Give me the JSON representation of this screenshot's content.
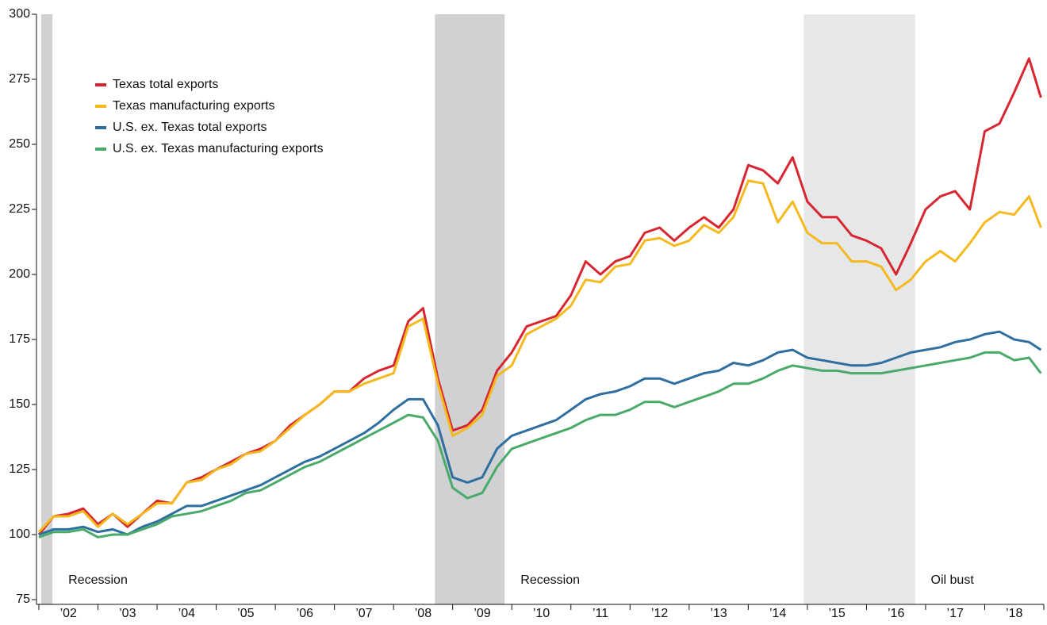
{
  "chart_data": {
    "type": "line",
    "x": [
      2002,
      2002.25,
      2002.5,
      2002.75,
      2003,
      2003.25,
      2003.5,
      2003.75,
      2004,
      2004.25,
      2004.5,
      2004.75,
      2005,
      2005.25,
      2005.5,
      2005.75,
      2006,
      2006.25,
      2006.5,
      2006.75,
      2007,
      2007.25,
      2007.5,
      2007.75,
      2008,
      2008.25,
      2008.5,
      2008.75,
      2009,
      2009.25,
      2009.5,
      2009.75,
      2010,
      2010.25,
      2010.5,
      2010.75,
      2011,
      2011.25,
      2011.5,
      2011.75,
      2012,
      2012.25,
      2012.5,
      2012.75,
      2013,
      2013.25,
      2013.5,
      2013.75,
      2014,
      2014.25,
      2014.5,
      2014.75,
      2015,
      2015.25,
      2015.5,
      2015.75,
      2016,
      2016.25,
      2016.5,
      2016.75,
      2017,
      2017.25,
      2017.5,
      2017.75,
      2018,
      2018.25,
      2018.5,
      2018.75,
      2018.95
    ],
    "series": [
      {
        "name": "Texas total exports",
        "color": "#d7262f",
        "values": [
          100,
          107,
          108,
          110,
          104,
          108,
          103,
          108,
          113,
          112,
          120,
          122,
          125,
          128,
          131,
          133,
          136,
          142,
          146,
          150,
          155,
          155,
          160,
          163,
          165,
          182,
          187,
          160,
          140,
          142,
          148,
          163,
          170,
          180,
          182,
          184,
          192,
          205,
          200,
          205,
          207,
          216,
          218,
          213,
          218,
          222,
          218,
          225,
          242,
          240,
          235,
          245,
          228,
          222,
          222,
          215,
          213,
          210,
          200,
          212,
          225,
          230,
          232,
          225,
          255,
          258,
          270,
          283,
          268
        ]
      },
      {
        "name": "Texas manufacturing exports",
        "color": "#f5b91e",
        "values": [
          101,
          107,
          107,
          109,
          103,
          108,
          104,
          108,
          112,
          112,
          120,
          121,
          125,
          127,
          131,
          132,
          136,
          141,
          146,
          150,
          155,
          155,
          158,
          160,
          162,
          180,
          183,
          158,
          138,
          141,
          146,
          161,
          165,
          177,
          180,
          183,
          188,
          198,
          197,
          203,
          204,
          213,
          214,
          211,
          213,
          219,
          216,
          222,
          236,
          235,
          220,
          228,
          216,
          212,
          212,
          205,
          205,
          203,
          194,
          198,
          205,
          209,
          205,
          212,
          220,
          224,
          223,
          230,
          218
        ]
      },
      {
        "name": "U.S. ex. Texas total exports",
        "color": "#2f6fa0",
        "values": [
          100,
          102,
          102,
          103,
          101,
          102,
          100,
          103,
          105,
          108,
          111,
          111,
          113,
          115,
          117,
          119,
          122,
          125,
          128,
          130,
          133,
          136,
          139,
          143,
          148,
          152,
          152,
          142,
          122,
          120,
          122,
          133,
          138,
          140,
          142,
          144,
          148,
          152,
          154,
          155,
          157,
          160,
          160,
          158,
          160,
          162,
          163,
          166,
          165,
          167,
          170,
          171,
          168,
          167,
          166,
          165,
          165,
          166,
          168,
          170,
          171,
          172,
          174,
          175,
          177,
          178,
          175,
          174,
          171
        ]
      },
      {
        "name": "U.S. ex. Texas manufacturing exports",
        "color": "#4aaa6a",
        "values": [
          99,
          101,
          101,
          102,
          99,
          100,
          100,
          102,
          104,
          107,
          108,
          109,
          111,
          113,
          116,
          117,
          120,
          123,
          126,
          128,
          131,
          134,
          137,
          140,
          143,
          146,
          145,
          136,
          118,
          114,
          116,
          126,
          133,
          135,
          137,
          139,
          141,
          144,
          146,
          146,
          148,
          151,
          151,
          149,
          151,
          153,
          155,
          158,
          158,
          160,
          163,
          165,
          164,
          163,
          163,
          162,
          162,
          162,
          163,
          164,
          165,
          166,
          167,
          168,
          170,
          170,
          167,
          168,
          162
        ]
      }
    ],
    "xlim": [
      2002,
      2019
    ],
    "xticks": [
      2002,
      2003,
      2004,
      2005,
      2006,
      2007,
      2008,
      2009,
      2010,
      2011,
      2012,
      2013,
      2014,
      2015,
      2016,
      2017,
      2018,
      2019
    ],
    "xtick_labels": [
      {
        "value": 2002.5,
        "label": "’02"
      },
      {
        "value": 2003.5,
        "label": "’03"
      },
      {
        "value": 2004.5,
        "label": "’04"
      },
      {
        "value": 2005.5,
        "label": "’05"
      },
      {
        "value": 2006.5,
        "label": "’06"
      },
      {
        "value": 2007.5,
        "label": "’07"
      },
      {
        "value": 2008.5,
        "label": "’08"
      },
      {
        "value": 2009.5,
        "label": "’09"
      },
      {
        "value": 2010.5,
        "label": "’10"
      },
      {
        "value": 2011.5,
        "label": "’11"
      },
      {
        "value": 2012.5,
        "label": "’12"
      },
      {
        "value": 2013.5,
        "label": "’13"
      },
      {
        "value": 2014.5,
        "label": "’14"
      },
      {
        "value": 2015.5,
        "label": "’15"
      },
      {
        "value": 2016.5,
        "label": "’16"
      },
      {
        "value": 2017.5,
        "label": "’17"
      },
      {
        "value": 2018.5,
        "label": "’18"
      }
    ],
    "ylim": [
      75,
      300
    ],
    "yticks": [
      75,
      100,
      125,
      150,
      175,
      200,
      225,
      250,
      275,
      300
    ],
    "grid": false,
    "legend": "upper-left",
    "shaded_periods": [
      {
        "start": 2002.04,
        "end": 2002.23,
        "label": "Recession",
        "color": "#d0d1d3"
      },
      {
        "start": 2008.7,
        "end": 2009.88,
        "label": "Recession",
        "color": "#d0d1d3"
      },
      {
        "start": 2014.94,
        "end": 2016.82,
        "label": "Oil bust",
        "color": "#e6e7e8"
      }
    ]
  }
}
